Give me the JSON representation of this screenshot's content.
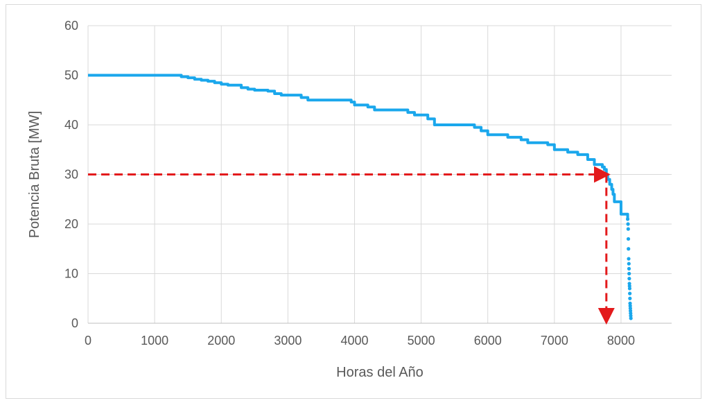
{
  "chart_data": {
    "type": "line",
    "title": "",
    "xlabel": "Horas del Año",
    "ylabel": "Potencia Bruta [MW]",
    "xlim": [
      0,
      8760
    ],
    "ylim": [
      0,
      60
    ],
    "x_ticks": [
      0,
      1000,
      2000,
      3000,
      4000,
      5000,
      6000,
      7000,
      8000
    ],
    "y_ticks": [
      0,
      10,
      20,
      30,
      40,
      50,
      60
    ],
    "grid": true,
    "legend": "none",
    "series": [
      {
        "color": "#1aa7ec",
        "x": [
          0,
          1300,
          1400,
          1500,
          1600,
          1700,
          1800,
          1900,
          2000,
          2100,
          2300,
          2400,
          2500,
          2700,
          2800,
          2900,
          3200,
          3300,
          3400,
          3900,
          3950,
          4000,
          4200,
          4300,
          4400,
          4700,
          4800,
          4900,
          5000,
          5100,
          5200,
          5700,
          5800,
          5900,
          6000,
          6200,
          6300,
          6500,
          6600,
          6900,
          7000,
          7200,
          7350,
          7500,
          7600,
          7700,
          7720,
          7750,
          7780,
          7800,
          7830,
          7860,
          7880,
          7900,
          8000,
          8090,
          8100
        ],
        "y": [
          50,
          50,
          49.7,
          49.5,
          49.2,
          49,
          48.8,
          48.5,
          48.2,
          48,
          47.5,
          47.2,
          47,
          46.8,
          46.3,
          46,
          45.5,
          45,
          45,
          45,
          44.6,
          44,
          43.6,
          43,
          43,
          43,
          42.5,
          42,
          42,
          41.2,
          40,
          40,
          39.5,
          38.8,
          38,
          38,
          37.5,
          37,
          36.4,
          36,
          35,
          34.5,
          34,
          33,
          32,
          32,
          31.5,
          31,
          30,
          29,
          28,
          27,
          26,
          24.5,
          22,
          22,
          21
        ]
      },
      {
        "color": "#1aa7ec",
        "x": [
          8100,
          8105,
          8108,
          8110,
          8112,
          8115,
          8118,
          8120,
          8122,
          8124,
          8126,
          8128,
          8130,
          8132,
          8134,
          8136,
          8138,
          8140,
          8142,
          8144,
          8146,
          8148
        ],
        "y": [
          21,
          20,
          19,
          17,
          15,
          13,
          12,
          11,
          10,
          9,
          8,
          7.5,
          7,
          6,
          5,
          4,
          3.5,
          3,
          2.5,
          2,
          1.5,
          1
        ]
      }
    ],
    "annotations": [
      {
        "type": "arrow",
        "color": "#e31a1c",
        "from": [
          0,
          30
        ],
        "to": [
          7780,
          30
        ]
      },
      {
        "type": "arrow",
        "color": "#e31a1c",
        "from": [
          7780,
          30
        ],
        "to": [
          7780,
          0
        ]
      }
    ]
  }
}
